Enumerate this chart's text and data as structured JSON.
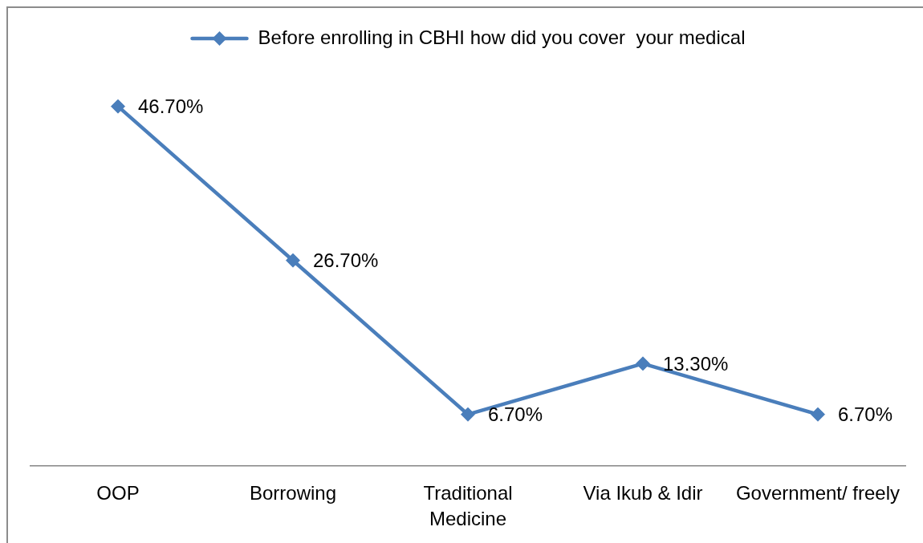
{
  "chart_data": {
    "type": "line",
    "categories": [
      "OOP",
      "Borrowing",
      "Traditional Medicine",
      "Via Ikub & Idir",
      "Government/ freely"
    ],
    "series": [
      {
        "name": "Before enrolling in CBHI how did you cover  your medical",
        "color": "#4a7ebb",
        "values": [
          46.7,
          26.7,
          6.7,
          13.3,
          6.7
        ],
        "value_labels": [
          "46.70%",
          "26.70%",
          "6.70%",
          "13.30%",
          "6.70%"
        ]
      }
    ],
    "legend": "top",
    "marker": "diamond",
    "line_style": "solid",
    "grid": false,
    "tick_labels": "x"
  }
}
